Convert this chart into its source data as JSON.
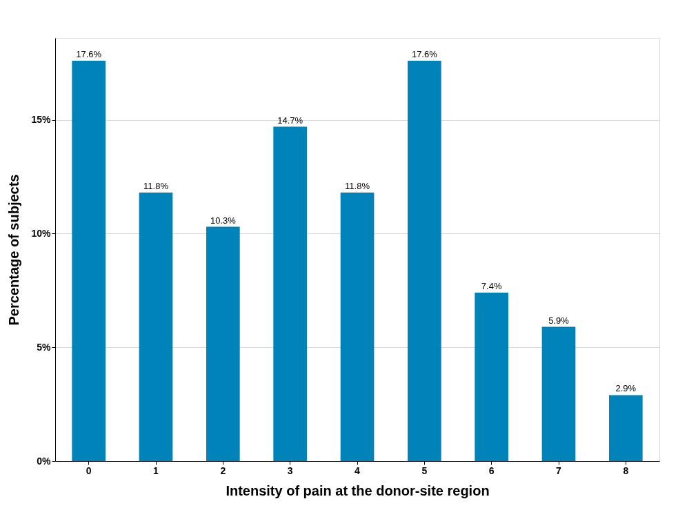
{
  "chart_data": {
    "type": "bar",
    "xlabel": "Intensity of pain at the donor-site region",
    "ylabel": "Percentage of subjects",
    "categories": [
      "0",
      "1",
      "2",
      "3",
      "4",
      "5",
      "6",
      "7",
      "8"
    ],
    "values": [
      17.6,
      11.8,
      10.3,
      14.7,
      11.8,
      17.6,
      7.4,
      5.9,
      2.9
    ],
    "value_labels": [
      "17.6%",
      "11.8%",
      "10.3%",
      "14.7%",
      "11.8%",
      "17.6%",
      "7.4%",
      "5.9%",
      "2.9%"
    ],
    "color": "#0083b8",
    "ylim": [
      0,
      18.6
    ],
    "yticks": [
      {
        "value": 0,
        "label": "0%"
      },
      {
        "value": 5,
        "label": "5%"
      },
      {
        "value": 10,
        "label": "10%"
      },
      {
        "value": 15,
        "label": "15%"
      }
    ],
    "grid": "y"
  }
}
